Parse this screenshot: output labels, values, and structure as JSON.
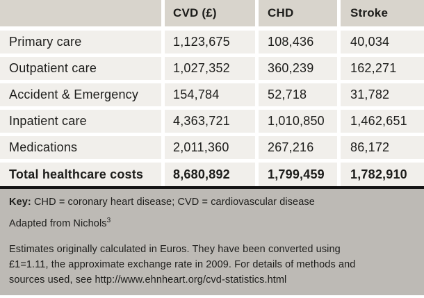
{
  "chart_data": {
    "type": "table",
    "title": "",
    "columns": {
      "label": "",
      "cvd": "CVD (£)",
      "chd": "CHD",
      "stroke": "Stroke"
    },
    "rows": [
      {
        "label": "Primary care",
        "cvd": "1,123,675",
        "chd": "108,436",
        "stroke": "40,034"
      },
      {
        "label": "Outpatient care",
        "cvd": "1,027,352",
        "chd": "360,239",
        "stroke": "162,271"
      },
      {
        "label": "Accident & Emergency",
        "cvd": "154,784",
        "chd": "52,718",
        "stroke": "31,782"
      },
      {
        "label": "Inpatient care",
        "cvd": "4,363,721",
        "chd": "1,010,850",
        "stroke": "1,462,651"
      },
      {
        "label": "Medications",
        "cvd": "2,011,360",
        "chd": "267,216",
        "stroke": "86,172"
      }
    ],
    "total_row": {
      "label": "Total healthcare costs",
      "cvd": "8,680,892",
      "chd": "1,799,459",
      "stroke": "1,782,910"
    }
  },
  "footer": {
    "key_label": "Key:",
    "key_text": " CHD = coronary heart disease; CVD = cardiovascular disease",
    "adapted_text": "Adapted from Nichols",
    "adapted_superscript": "3",
    "note_lines": [
      "Estimates originally calculated in Euros. They have been converted using",
      "£1=1.11, the approximate exchange rate in 2009. For details of methods and",
      "sources used, see http://www.ehnheart.org/cvd-statistics.html"
    ]
  },
  "colors": {
    "header_bg": "#d8d4cc",
    "row_bg": "#f1efeb",
    "footer_bg": "#bdbab5",
    "rule": "#141414",
    "separator": "#ffffff",
    "text": "#1c1c1a"
  }
}
